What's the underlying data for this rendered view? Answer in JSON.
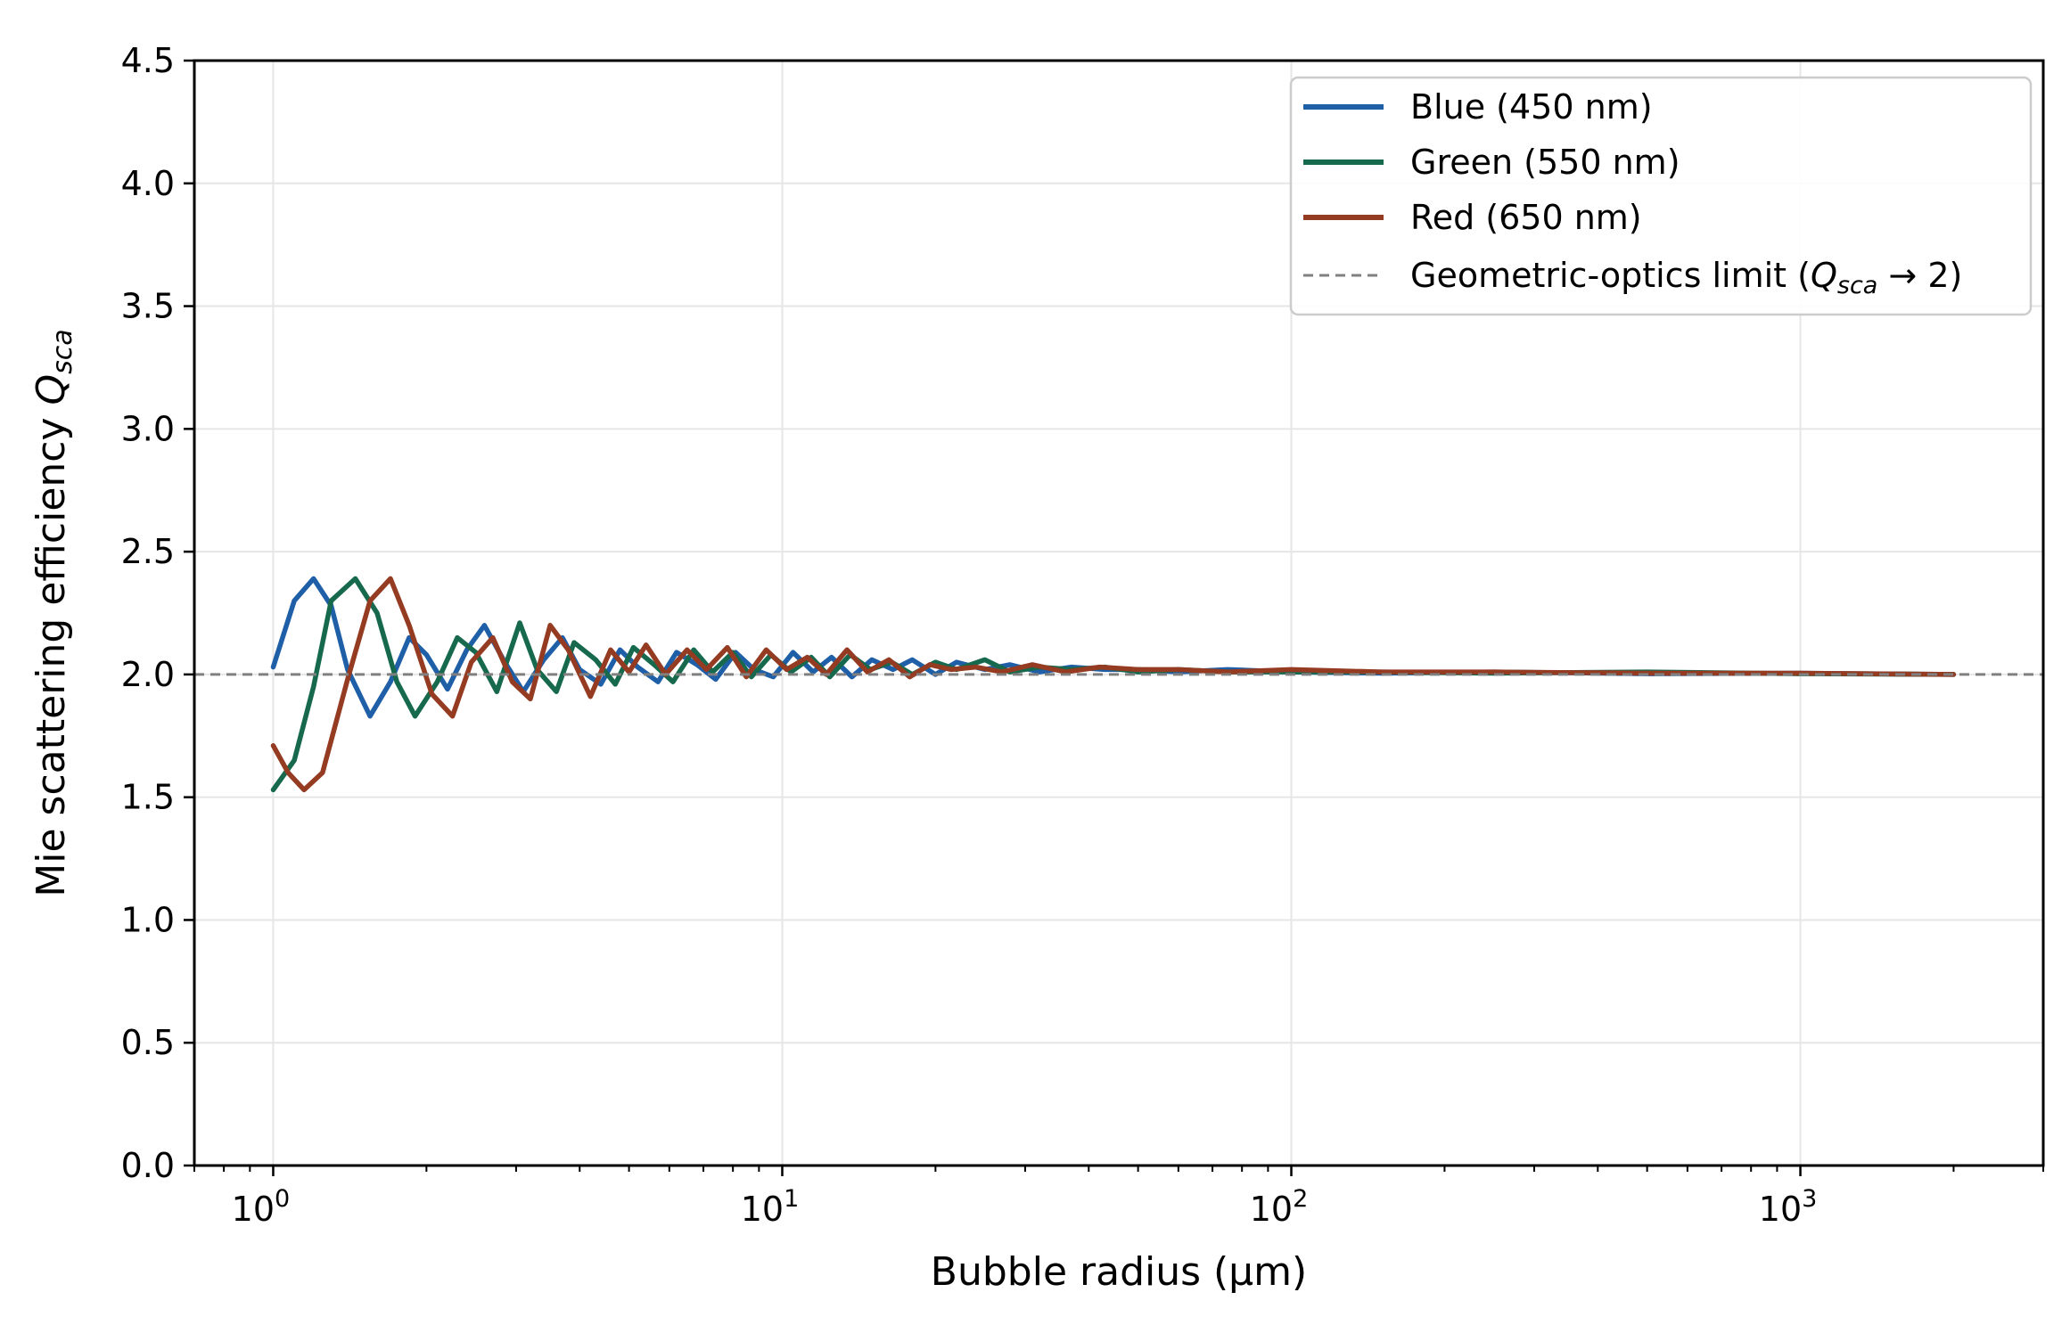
{
  "chart_data": {
    "type": "line",
    "xscale": "log",
    "xlabel": "Bubble radius (µm)",
    "ylabel_prefix": "Mie scattering efficiency ",
    "ylabel_symbol": "Q",
    "ylabel_subscript": "sca",
    "xlim": [
      0.7,
      3000
    ],
    "ylim": [
      0,
      4.5
    ],
    "grid": true,
    "legend_position": "top-right",
    "x_ticks": [
      {
        "value": 1,
        "base": "10",
        "exp": "0"
      },
      {
        "value": 10,
        "base": "10",
        "exp": "1"
      },
      {
        "value": 100,
        "base": "10",
        "exp": "2"
      },
      {
        "value": 1000,
        "base": "10",
        "exp": "3"
      }
    ],
    "y_ticks": [
      {
        "value": 0,
        "label": "0.0"
      },
      {
        "value": 0.5,
        "label": "0.5"
      },
      {
        "value": 1,
        "label": "1.0"
      },
      {
        "value": 1.5,
        "label": "1.5"
      },
      {
        "value": 2,
        "label": "2.0"
      },
      {
        "value": 2.5,
        "label": "2.5"
      },
      {
        "value": 3,
        "label": "3.0"
      },
      {
        "value": 3.5,
        "label": "3.5"
      },
      {
        "value": 4,
        "label": "4.0"
      },
      {
        "value": 4.5,
        "label": "4.5"
      }
    ],
    "series": [
      {
        "name": "Blue (450 nm)",
        "color": "#1f5fa8",
        "x": [
          1.0,
          1.1,
          1.2,
          1.3,
          1.4,
          1.55,
          1.7,
          1.85,
          2.0,
          2.2,
          2.4,
          2.6,
          2.85,
          3.1,
          3.4,
          3.7,
          4.0,
          4.4,
          4.8,
          5.2,
          5.7,
          6.2,
          6.8,
          7.4,
          8.1,
          8.8,
          9.6,
          10.5,
          11.5,
          12.5,
          13.7,
          15,
          16.5,
          18,
          20,
          22,
          25,
          28,
          32,
          37,
          43,
          50,
          60,
          75,
          100,
          150,
          250,
          500,
          1000,
          2000
        ],
        "y": [
          2.03,
          2.3,
          2.39,
          2.28,
          2.02,
          1.83,
          1.97,
          2.15,
          2.08,
          1.94,
          2.1,
          2.2,
          2.05,
          1.93,
          2.06,
          2.15,
          2.02,
          1.96,
          2.1,
          2.03,
          1.97,
          2.09,
          2.04,
          1.98,
          2.09,
          2.02,
          1.99,
          2.09,
          2.01,
          2.07,
          1.99,
          2.06,
          2.02,
          2.06,
          2.0,
          2.05,
          2.02,
          2.04,
          2.01,
          2.03,
          2.02,
          2.02,
          2.01,
          2.02,
          2.01,
          2.005,
          2.01,
          2.003,
          2.005,
          2.0
        ]
      },
      {
        "name": "Green (550 nm)",
        "color": "#17694e",
        "x": [
          1.0,
          1.1,
          1.2,
          1.3,
          1.45,
          1.6,
          1.75,
          1.9,
          2.1,
          2.3,
          2.5,
          2.75,
          3.05,
          3.3,
          3.6,
          3.9,
          4.3,
          4.7,
          5.1,
          5.6,
          6.1,
          6.7,
          7.3,
          8.0,
          8.7,
          9.5,
          10.4,
          11.4,
          12.4,
          13.6,
          14.9,
          16.4,
          18,
          20,
          22,
          25,
          28,
          32,
          37,
          43,
          50,
          60,
          75,
          100,
          150,
          250,
          500,
          1000,
          2000
        ],
        "y": [
          1.53,
          1.65,
          1.95,
          2.3,
          2.39,
          2.25,
          1.97,
          1.83,
          1.97,
          2.15,
          2.09,
          1.93,
          2.21,
          2.02,
          1.93,
          2.13,
          2.06,
          1.96,
          2.11,
          2.04,
          1.97,
          2.1,
          2.01,
          2.09,
          1.99,
          2.08,
          2.01,
          2.07,
          1.99,
          2.08,
          2.02,
          2.05,
          2.0,
          2.05,
          2.02,
          2.06,
          2.01,
          2.03,
          2.02,
          2.03,
          2.01,
          2.02,
          2.01,
          2.01,
          2.01,
          2.005,
          2.01,
          2.003,
          2.0
        ]
      },
      {
        "name": "Red (650 nm)",
        "color": "#943b22",
        "x": [
          1.0,
          1.07,
          1.15,
          1.25,
          1.4,
          1.55,
          1.7,
          1.85,
          2.05,
          2.25,
          2.45,
          2.7,
          2.95,
          3.2,
          3.5,
          3.8,
          4.2,
          4.6,
          5.0,
          5.4,
          5.9,
          6.5,
          7.1,
          7.8,
          8.5,
          9.3,
          10.2,
          11.2,
          12.2,
          13.4,
          14.7,
          16.2,
          17.8,
          19.5,
          21.5,
          24,
          27,
          31,
          36,
          42,
          50,
          60,
          75,
          100,
          150,
          250,
          500,
          1000,
          2000
        ],
        "y": [
          1.71,
          1.6,
          1.53,
          1.6,
          1.98,
          2.3,
          2.39,
          2.2,
          1.92,
          1.83,
          2.05,
          2.15,
          1.97,
          1.9,
          2.2,
          2.1,
          1.91,
          2.1,
          2.01,
          2.12,
          2.0,
          2.1,
          2.02,
          2.11,
          1.99,
          2.1,
          2.02,
          2.07,
          2.0,
          2.1,
          2.01,
          2.06,
          1.99,
          2.04,
          2.02,
          2.03,
          2.01,
          2.04,
          2.01,
          2.03,
          2.02,
          2.02,
          2.01,
          2.02,
          2.01,
          2.01,
          2.005,
          2.005,
          2.0
        ]
      }
    ],
    "reference_line": {
      "y": 2.0,
      "label_prefix": "Geometric-optics limit (",
      "label_symbol": "Q",
      "label_subscript": "sca",
      "label_suffix": " → 2)",
      "color": "#808080"
    }
  }
}
